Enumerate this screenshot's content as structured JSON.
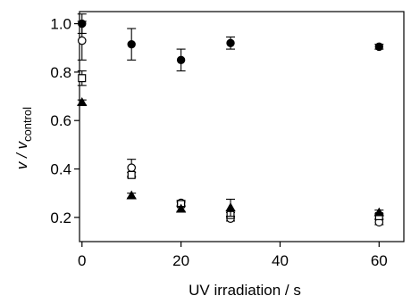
{
  "chart_data": {
    "type": "scatter",
    "xlabel": "UV irradiation / s",
    "ylabel": "v / v",
    "ylabel_subscript": "control",
    "xlim": [
      -0.5,
      65
    ],
    "ylim": [
      0.1,
      1.05
    ],
    "xticks": [
      "0",
      "20",
      "40",
      "60"
    ],
    "xtick_values": [
      0,
      20,
      40,
      60
    ],
    "yticks": [
      "0.2",
      "0.4",
      "0.6",
      "0.8",
      "1.0"
    ],
    "ytick_values": [
      0.2,
      0.4,
      0.6,
      0.8,
      1.0
    ],
    "grid": false,
    "series": [
      {
        "marker": "filled-circle",
        "points": [
          {
            "x": 0,
            "y": 1.0,
            "err": 0.04
          },
          {
            "x": 10,
            "y": 0.915,
            "err": 0.065
          },
          {
            "x": 20,
            "y": 0.85,
            "err": 0.045
          },
          {
            "x": 30,
            "y": 0.92,
            "err": 0.025
          },
          {
            "x": 60,
            "y": 0.905,
            "err": 0.01
          }
        ]
      },
      {
        "marker": "open-circle",
        "points": [
          {
            "x": 0,
            "y": 0.93,
            "err": 0.08
          },
          {
            "x": 10,
            "y": 0.405,
            "err": 0.035
          },
          {
            "x": 20,
            "y": 0.26,
            "err": 0.01
          },
          {
            "x": 30,
            "y": 0.195,
            "err": 0.01
          },
          {
            "x": 60,
            "y": 0.18,
            "err": 0.01
          }
        ]
      },
      {
        "marker": "open-square",
        "points": [
          {
            "x": 0,
            "y": 0.775,
            "err": 0.03
          },
          {
            "x": 10,
            "y": 0.375,
            "err": 0.01
          },
          {
            "x": 20,
            "y": 0.255,
            "err": 0.01
          },
          {
            "x": 30,
            "y": 0.21,
            "err": 0.01
          },
          {
            "x": 60,
            "y": 0.205,
            "err": 0.01
          }
        ]
      },
      {
        "marker": "filled-triangle",
        "points": [
          {
            "x": 0,
            "y": 0.675,
            "err": 0.01
          },
          {
            "x": 10,
            "y": 0.29,
            "err": 0.01
          },
          {
            "x": 20,
            "y": 0.235,
            "err": 0.01
          },
          {
            "x": 30,
            "y": 0.24,
            "err": 0.035
          },
          {
            "x": 60,
            "y": 0.22,
            "err": 0.01
          }
        ]
      }
    ]
  }
}
